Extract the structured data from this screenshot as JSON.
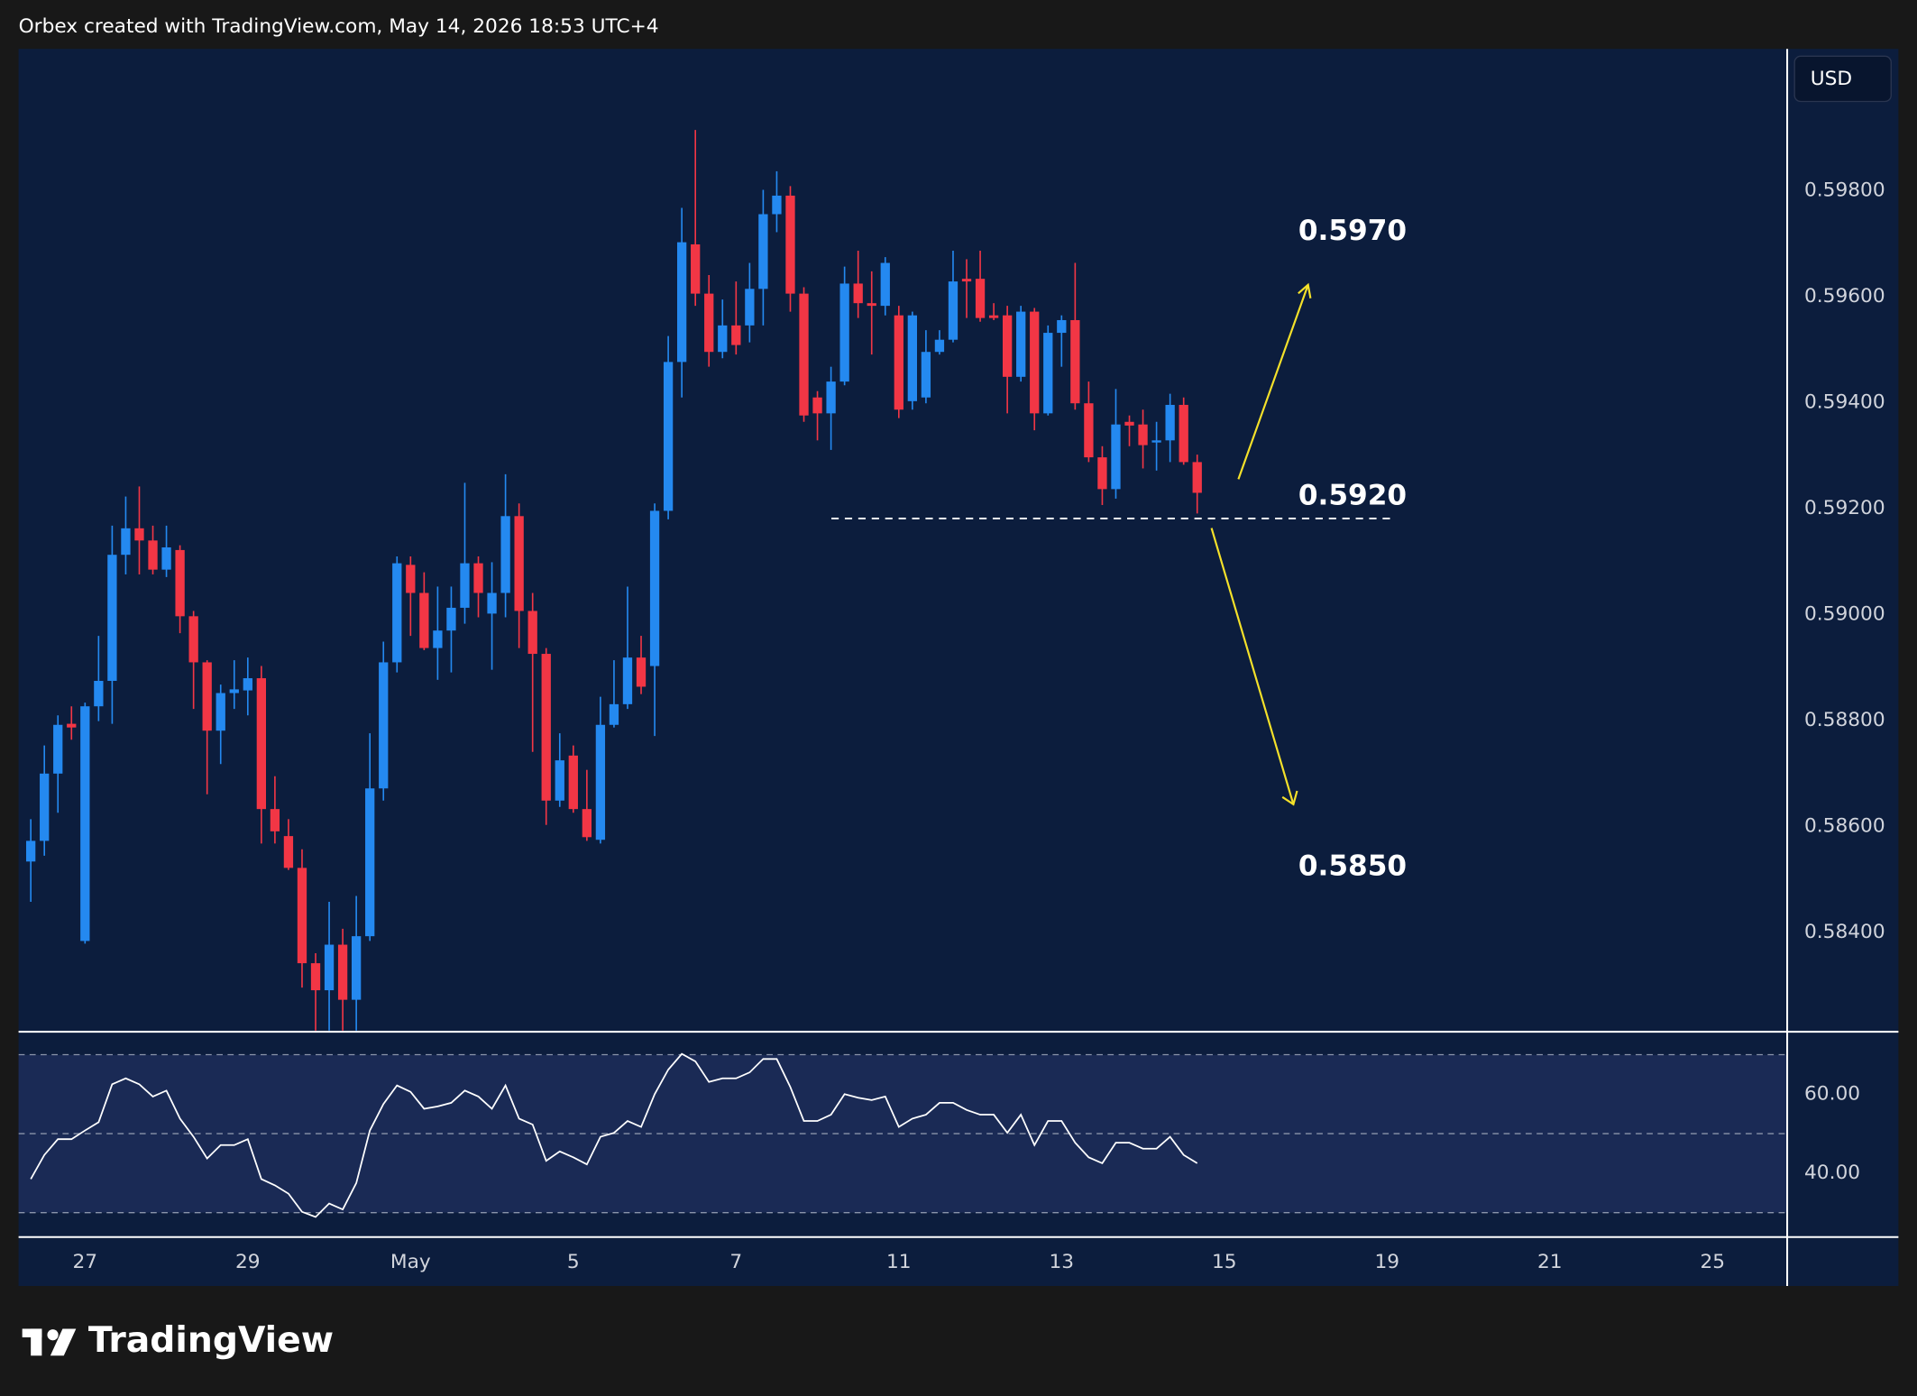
{
  "header": {
    "attribution": "Orbex created with TradingView.com, May 14, 2026 18:53 UTC+4",
    "currency_button": "USD",
    "logo": "TradingView"
  },
  "chart_data": [
    {
      "type": "candlestick",
      "up_color": "#2489f0",
      "down_color": "#f23645",
      "xlim": [
        -0.9,
        129.5
      ],
      "xticks": [
        {
          "value": 4,
          "label": "27"
        },
        {
          "value": 16,
          "label": "29"
        },
        {
          "value": 28,
          "label": "May"
        },
        {
          "value": 40,
          "label": "5"
        },
        {
          "value": 52,
          "label": "7"
        },
        {
          "value": 64,
          "label": "11"
        },
        {
          "value": 76,
          "label": "13"
        },
        {
          "value": 88,
          "label": "15"
        },
        {
          "value": 100,
          "label": "19"
        },
        {
          "value": 112,
          "label": "21"
        },
        {
          "value": 124,
          "label": "25"
        }
      ],
      "ylim": [
        0.58215,
        0.60068
      ],
      "yticks": [
        {
          "value": 0.584,
          "label": "0.58400"
        },
        {
          "value": 0.586,
          "label": "0.58600"
        },
        {
          "value": 0.588,
          "label": "0.58800"
        },
        {
          "value": 0.59,
          "label": "0.59000"
        },
        {
          "value": 0.592,
          "label": "0.59200"
        },
        {
          "value": 0.594,
          "label": "0.59400"
        },
        {
          "value": 0.596,
          "label": "0.59600"
        },
        {
          "value": 0.598,
          "label": "0.59800"
        }
      ],
      "annotations": [
        {
          "value": 0.597,
          "label": "0.5970"
        },
        {
          "value": 0.592,
          "label": "0.5920"
        },
        {
          "value": 0.585,
          "label": "0.5850"
        }
      ],
      "open": [
        0.58534,
        0.58573,
        0.587,
        0.58794,
        0.58384,
        0.58827,
        0.58875,
        0.59113,
        0.59163,
        0.5914,
        0.59085,
        0.59122,
        0.58997,
        0.5891,
        0.58781,
        0.58852,
        0.58857,
        0.5888,
        0.58633,
        0.58582,
        0.58522,
        0.58342,
        0.58291,
        0.58377,
        0.58273,
        0.58393,
        0.58672,
        0.5891,
        0.59094,
        0.59041,
        0.58937,
        0.5897,
        0.59013,
        0.59097,
        0.59002,
        0.59041,
        0.59186,
        0.59007,
        0.58926,
        0.58649,
        0.58734,
        0.58633,
        0.58575,
        0.58792,
        0.58831,
        0.58919,
        0.58903,
        0.59196,
        0.59477,
        0.59699,
        0.59606,
        0.59496,
        0.59546,
        0.59546,
        0.59615,
        0.59756,
        0.59791,
        0.59606,
        0.5941,
        0.5938,
        0.5944,
        0.59625,
        0.59588,
        0.59583,
        0.59565,
        0.59403,
        0.5941,
        0.59496,
        0.59519,
        0.59634,
        0.59634,
        0.59565,
        0.59565,
        0.59449,
        0.59572,
        0.5938,
        0.59532,
        0.59556,
        0.59399,
        0.59297,
        0.59237,
        0.59364,
        0.59359,
        0.59325,
        0.59329,
        0.59396,
        0.59288
      ],
      "high": [
        0.58614,
        0.58753,
        0.5881,
        0.58827,
        0.58834,
        0.5896,
        0.59168,
        0.59223,
        0.59242,
        0.59168,
        0.59168,
        0.59131,
        0.59007,
        0.58914,
        0.58868,
        0.58914,
        0.58919,
        0.58903,
        0.58695,
        0.58614,
        0.58557,
        0.58361,
        0.58458,
        0.58407,
        0.58469,
        0.58776,
        0.58949,
        0.5911,
        0.5911,
        0.5908,
        0.59053,
        0.59053,
        0.59249,
        0.5911,
        0.59099,
        0.59265,
        0.5921,
        0.59041,
        0.58937,
        0.58776,
        0.58753,
        0.58707,
        0.58845,
        0.58914,
        0.59053,
        0.5896,
        0.5921,
        0.59526,
        0.59768,
        0.59915,
        0.59641,
        0.59595,
        0.59629,
        0.59664,
        0.59802,
        0.59837,
        0.59809,
        0.59618,
        0.59422,
        0.59468,
        0.59657,
        0.59687,
        0.59648,
        0.59675,
        0.59583,
        0.59572,
        0.59537,
        0.59537,
        0.59687,
        0.59671,
        0.59687,
        0.59588,
        0.59583,
        0.59583,
        0.59579,
        0.59546,
        0.59565,
        0.59664,
        0.5944,
        0.59318,
        0.59426,
        0.59376,
        0.59387,
        0.59364,
        0.59417,
        0.5941,
        0.59302
      ],
      "low": [
        0.58458,
        0.58545,
        0.58626,
        0.58764,
        0.58379,
        0.58799,
        0.58794,
        0.59076,
        0.59076,
        0.59076,
        0.59071,
        0.58965,
        0.58822,
        0.58661,
        0.58718,
        0.58822,
        0.5881,
        0.58568,
        0.58568,
        0.58518,
        0.58296,
        0.5818,
        0.5819,
        0.5819,
        0.582,
        0.58384,
        0.58649,
        0.58891,
        0.5896,
        0.58933,
        0.58877,
        0.58891,
        0.58983,
        0.58995,
        0.58896,
        0.58995,
        0.58937,
        0.58741,
        0.58603,
        0.58637,
        0.58626,
        0.58573,
        0.58568,
        0.58787,
        0.58822,
        0.5885,
        0.58771,
        0.5918,
        0.5941,
        0.59583,
        0.59468,
        0.59484,
        0.59491,
        0.59514,
        0.59546,
        0.59722,
        0.59572,
        0.59364,
        0.59329,
        0.59311,
        0.59433,
        0.5956,
        0.59491,
        0.59565,
        0.59371,
        0.59387,
        0.59399,
        0.59491,
        0.59514,
        0.5956,
        0.59553,
        0.59556,
        0.5938,
        0.5944,
        0.59348,
        0.59376,
        0.59468,
        0.59387,
        0.59288,
        0.59207,
        0.59219,
        0.59318,
        0.59276,
        0.59272,
        0.59288,
        0.59283,
        0.59191
      ],
      "close": [
        0.58573,
        0.587,
        0.58792,
        0.58787,
        0.58827,
        0.58875,
        0.59113,
        0.59163,
        0.5914,
        0.59085,
        0.59127,
        0.58997,
        0.5891,
        0.58781,
        0.58852,
        0.58859,
        0.5888,
        0.58633,
        0.58591,
        0.58522,
        0.58342,
        0.58291,
        0.58377,
        0.58273,
        0.58393,
        0.58672,
        0.5891,
        0.59097,
        0.59041,
        0.58937,
        0.5897,
        0.59013,
        0.59097,
        0.59041,
        0.59041,
        0.59186,
        0.59007,
        0.58926,
        0.58649,
        0.58725,
        0.58633,
        0.5858,
        0.58792,
        0.58831,
        0.58919,
        0.58864,
        0.59196,
        0.59477,
        0.59703,
        0.59606,
        0.59496,
        0.59546,
        0.59509,
        0.59615,
        0.59756,
        0.59791,
        0.59606,
        0.59376,
        0.5938,
        0.5944,
        0.59625,
        0.59588,
        0.59583,
        0.59664,
        0.59387,
        0.59565,
        0.59496,
        0.59519,
        0.59629,
        0.59629,
        0.5956,
        0.5956,
        0.59449,
        0.59572,
        0.5938,
        0.59532,
        0.59556,
        0.59399,
        0.59297,
        0.59237,
        0.59359,
        0.59357,
        0.5932,
        0.59329,
        0.59396,
        0.59288,
        0.5923
      ]
    },
    {
      "type": "line",
      "color": "#ffffff",
      "ylim": [
        23.8,
        75.5
      ],
      "yticks": [
        {
          "value": 60,
          "label": "60.00"
        },
        {
          "value": 40,
          "label": "40.00"
        }
      ],
      "levels": [
        70,
        50,
        30
      ],
      "values": [
        38.5,
        44.6,
        48.6,
        48.6,
        50.8,
        52.9,
        62.5,
        64.0,
        62.5,
        59.4,
        60.9,
        53.8,
        49.2,
        43.7,
        47.1,
        47.1,
        48.6,
        38.5,
        36.9,
        34.8,
        30.2,
        28.9,
        32.3,
        30.8,
        37.5,
        50.8,
        57.5,
        62.2,
        60.6,
        56.3,
        56.9,
        57.8,
        60.9,
        59.4,
        56.3,
        62.2,
        53.8,
        52.3,
        43.1,
        45.5,
        44.0,
        42.2,
        49.2,
        50.2,
        53.2,
        51.7,
        60.0,
        66.2,
        70.2,
        68.3,
        63.1,
        64.0,
        64.0,
        65.5,
        68.9,
        68.9,
        61.8,
        53.2,
        53.2,
        54.8,
        60.0,
        59.1,
        58.5,
        59.4,
        51.7,
        53.8,
        54.8,
        57.8,
        57.8,
        56.0,
        54.8,
        54.8,
        50.2,
        54.8,
        47.1,
        53.2,
        53.2,
        47.7,
        44.0,
        42.5,
        47.7,
        47.7,
        46.2,
        46.2,
        49.2,
        44.6,
        42.5
      ]
    }
  ]
}
